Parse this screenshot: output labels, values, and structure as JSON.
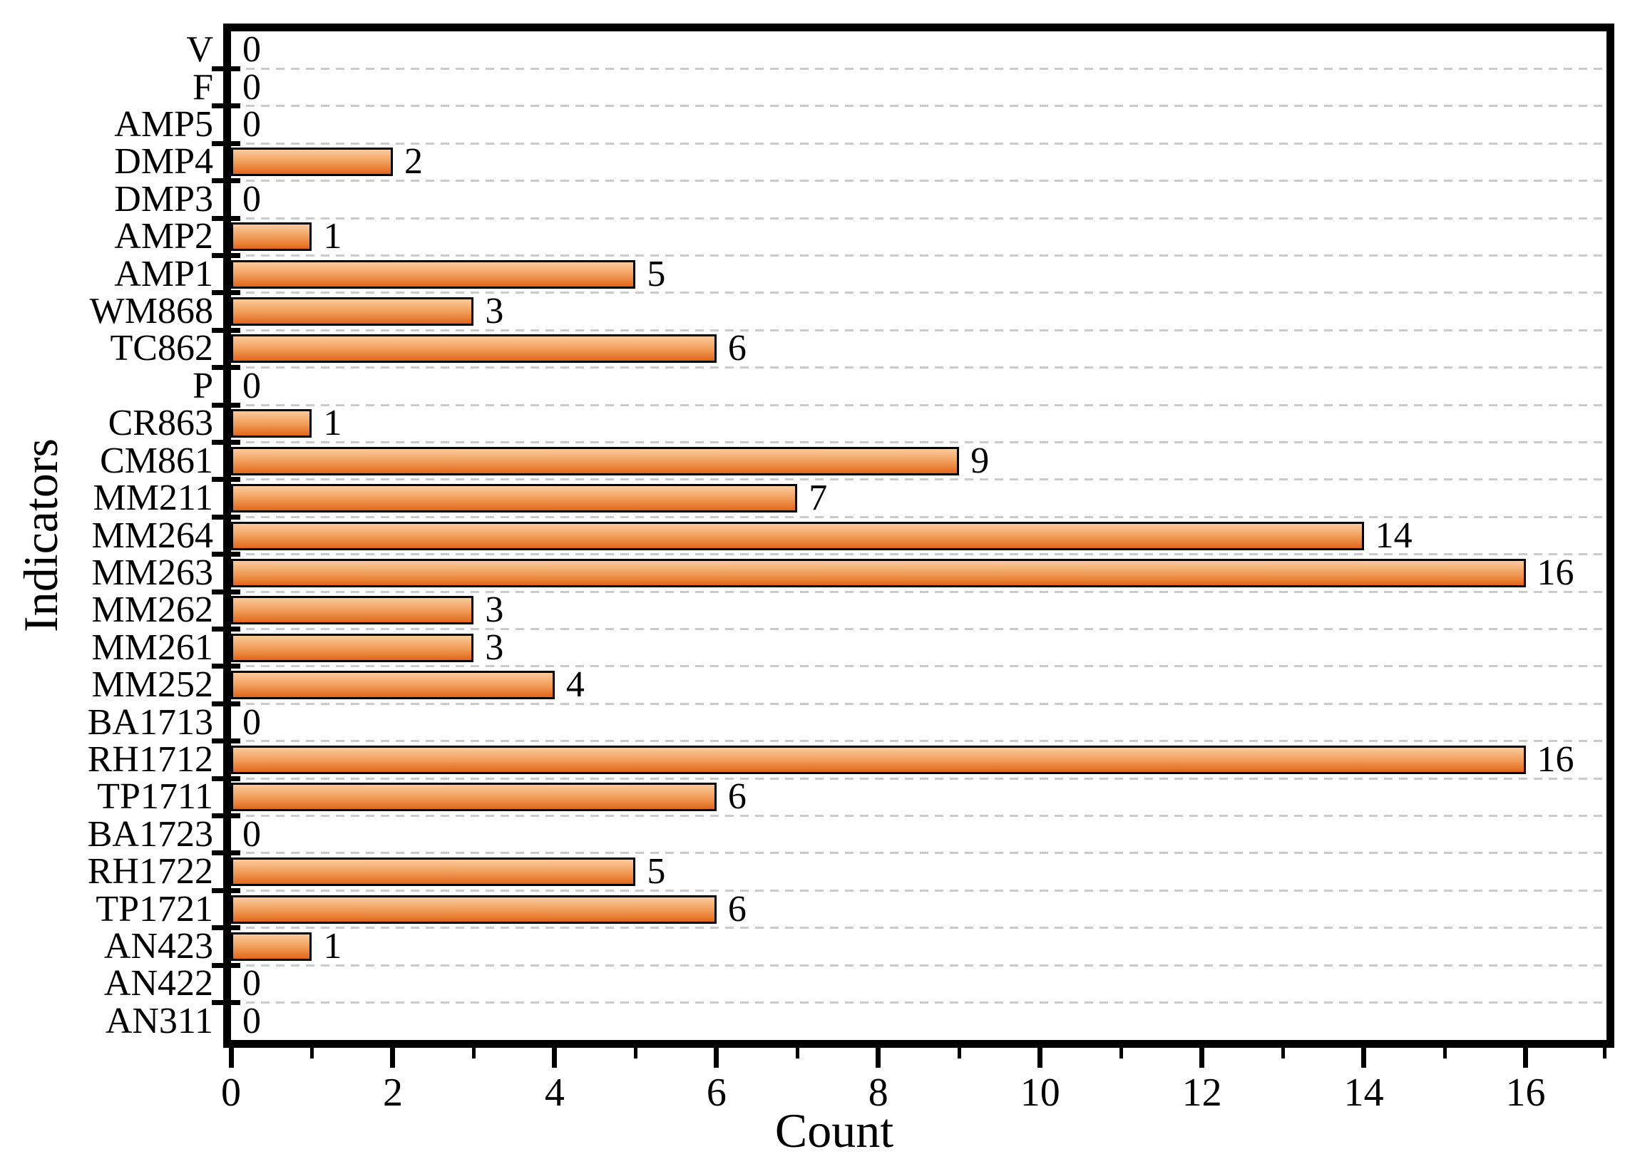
{
  "chart_data": {
    "type": "bar",
    "orientation": "horizontal",
    "title": "",
    "xlabel": "Count",
    "ylabel": "Indicators",
    "xlim": [
      0,
      17
    ],
    "x_major_ticks": [
      0,
      2,
      4,
      6,
      8,
      10,
      12,
      14,
      16
    ],
    "x_minor_ticks": [
      1,
      3,
      5,
      7,
      9,
      11,
      13,
      15,
      17
    ],
    "grid": "horizontal dashed lines between category rows",
    "legend": "none",
    "value_labels_shown": true,
    "categories": [
      "V",
      "F",
      "AMP5",
      "DMP4",
      "DMP3",
      "AMP2",
      "AMP1",
      "WM868",
      "TC862",
      "P",
      "CR863",
      "CM861",
      "MM211",
      "MM264",
      "MM263",
      "MM262",
      "MM261",
      "MM252",
      "BA1713",
      "RH1712",
      "TP1711",
      "BA1723",
      "RH1722",
      "TP1721",
      "AN423",
      "AN422",
      "AN311"
    ],
    "values": [
      0,
      0,
      0,
      2,
      0,
      1,
      5,
      3,
      6,
      0,
      1,
      9,
      7,
      14,
      16,
      3,
      3,
      4,
      0,
      16,
      6,
      0,
      5,
      6,
      1,
      0,
      0
    ],
    "colors": {
      "bar_gradient_top": "#FCCB9B",
      "bar_gradient_mid": "#F09A55",
      "bar_gradient_bottom": "#E2661A",
      "bar_border": "#000000",
      "axis": "#000000",
      "gridline": "#cbcbcb",
      "text": "#000000",
      "background": "#ffffff"
    }
  }
}
